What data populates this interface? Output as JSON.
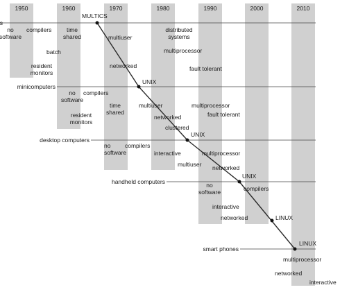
{
  "colors": {
    "column_fill": "#d0d0d0",
    "line": "#444444",
    "text": "#1a1a1a",
    "background": "#ffffff"
  },
  "decades": [
    "1950",
    "1960",
    "1970",
    "1980",
    "1990",
    "2000",
    "2010"
  ],
  "platforms": {
    "mainframes": "mainframes",
    "minicomputers": "minicomputers",
    "desktop": "desktop computers",
    "handheld": "handheld computers",
    "smart_phones": "smart phones"
  },
  "os_labels": {
    "multics": "MULTICS",
    "unix": "UNIX",
    "linux": "LINUX"
  },
  "features": {
    "no_software": "no\nsoftware",
    "compilers": "compilers",
    "time_shared": "time\nshared",
    "batch": "batch",
    "resident_monitors": "resident\nmonitors",
    "multiuser": "multiuser",
    "networked": "networked",
    "distributed_systems": "distributed\nsystems",
    "multiprocessor": "multiprocessor",
    "fault_tolerant": "fault tolerant",
    "clustered": "clustered",
    "interactive": "interactive"
  }
}
